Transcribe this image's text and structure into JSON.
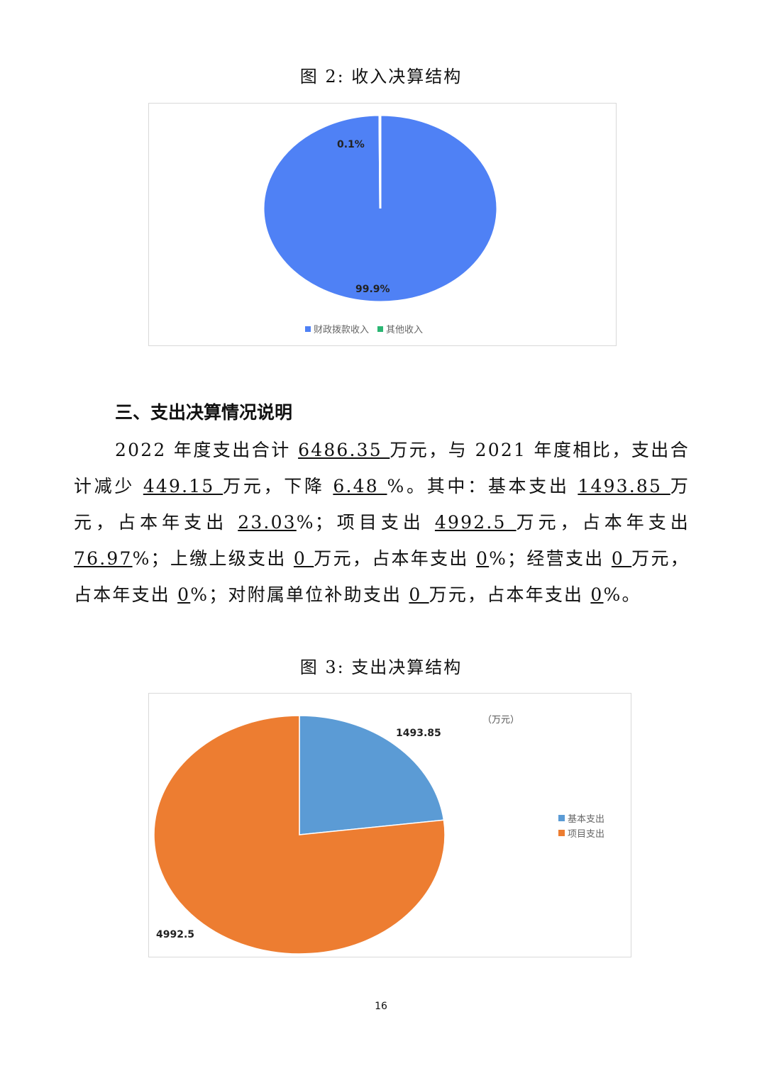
{
  "figure2": {
    "caption": "图 2:  收入决算结构",
    "chart_data": {
      "type": "pie",
      "categories": [
        "财政拨款收入",
        "其他收入"
      ],
      "values": [
        99.9,
        0.1
      ],
      "data_labels": [
        "99.9%",
        "0.1%"
      ],
      "colors": [
        "#4F81F5",
        "#2BB673"
      ],
      "legend": "bottom"
    }
  },
  "section": {
    "heading": "三、支出决算情况说明",
    "paragraph": [
      {
        "t": "2022 年度支出合计 "
      },
      {
        "t": "6486.35 ",
        "u": true
      },
      {
        "t": "万元，与 2021 年度相比，支出合计减少 "
      },
      {
        "t": "449.15 ",
        "u": true
      },
      {
        "t": "万元，下降 "
      },
      {
        "t": "6.48 ",
        "u": true
      },
      {
        "t": "%。其中：基本支出 "
      },
      {
        "t": "1493.85 ",
        "u": true
      },
      {
        "t": "万元，占本年支出 "
      },
      {
        "t": "23.03",
        "u": true
      },
      {
        "t": "%；项目支出 "
      },
      {
        "t": "4992.5 ",
        "u": true
      },
      {
        "t": "万元，占本年支出 "
      },
      {
        "t": "76.97",
        "u": true
      },
      {
        "t": "%；上缴上级支出 "
      },
      {
        "t": "0 ",
        "u": true
      },
      {
        "t": "万元，占本年支出 "
      },
      {
        "t": "0",
        "u": true
      },
      {
        "t": "%；经营支出 "
      },
      {
        "t": "0 ",
        "u": true
      },
      {
        "t": "万元，占本年支出 "
      },
      {
        "t": "0",
        "u": true
      },
      {
        "t": "%；对附属单位补助支出 "
      },
      {
        "t": "0 ",
        "u": true
      },
      {
        "t": "万元，占本年支出 "
      },
      {
        "t": "0",
        "u": true
      },
      {
        "t": "%。"
      }
    ]
  },
  "figure3": {
    "caption": "图 3:  支出决算结构",
    "chart_data": {
      "type": "pie",
      "unit": "（万元）",
      "categories": [
        "基本支出",
        "项目支出"
      ],
      "values": [
        1493.85,
        4992.5
      ],
      "data_labels": [
        "1493.85",
        "4992.5"
      ],
      "colors": [
        "#5B9BD5",
        "#ED7D31"
      ],
      "legend": "right"
    }
  },
  "page_number": "16"
}
